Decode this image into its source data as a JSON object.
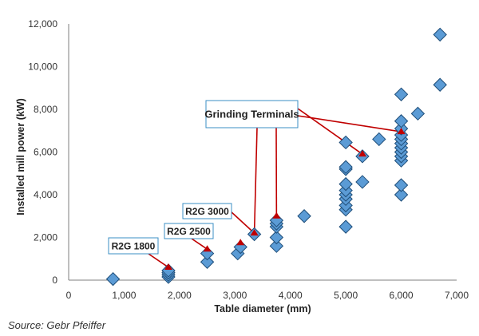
{
  "source_text": "Source: Gebr Pfeiffer",
  "chart_data": {
    "type": "scatter",
    "xlabel": "Table diameter (mm)",
    "ylabel": "Installed mill power (kW)",
    "xlim": [
      0,
      7000
    ],
    "ylim": [
      0,
      12000
    ],
    "xticks": [
      0,
      1000,
      2000,
      3000,
      4000,
      5000,
      6000,
      7000
    ],
    "yticks": [
      0,
      2000,
      4000,
      6000,
      8000,
      10000,
      12000
    ],
    "xtick_labels": [
      "0",
      "1,000",
      "2,000",
      "3,000",
      "4,000",
      "5,000",
      "6,000",
      "7,000"
    ],
    "ytick_labels": [
      "0",
      "2,000",
      "4,000",
      "6,000",
      "8,000",
      "10,000",
      "12,000"
    ],
    "grid": false,
    "marker_color": "#5b9bd5",
    "marker_edge_color": "#1f4e79",
    "highlight_color": "#c00000",
    "points": [
      {
        "x": 800,
        "y": 50
      },
      {
        "x": 1800,
        "y": 150
      },
      {
        "x": 1800,
        "y": 250
      },
      {
        "x": 1800,
        "y": 350
      },
      {
        "x": 1800,
        "y": 450
      },
      {
        "x": 2500,
        "y": 850
      },
      {
        "x": 2500,
        "y": 1250
      },
      {
        "x": 3050,
        "y": 1250
      },
      {
        "x": 3100,
        "y": 1550
      },
      {
        "x": 3350,
        "y": 2150
      },
      {
        "x": 3750,
        "y": 1600
      },
      {
        "x": 3750,
        "y": 2000
      },
      {
        "x": 3750,
        "y": 2500
      },
      {
        "x": 3750,
        "y": 2650
      },
      {
        "x": 3750,
        "y": 2800
      },
      {
        "x": 4250,
        "y": 3000
      },
      {
        "x": 5000,
        "y": 2500
      },
      {
        "x": 5000,
        "y": 3300
      },
      {
        "x": 5000,
        "y": 3500
      },
      {
        "x": 5000,
        "y": 3800
      },
      {
        "x": 5000,
        "y": 4000
      },
      {
        "x": 5000,
        "y": 4200
      },
      {
        "x": 5000,
        "y": 4500
      },
      {
        "x": 5000,
        "y": 5200
      },
      {
        "x": 5000,
        "y": 5300
      },
      {
        "x": 5000,
        "y": 6450
      },
      {
        "x": 5300,
        "y": 4600
      },
      {
        "x": 5300,
        "y": 5800
      },
      {
        "x": 5600,
        "y": 6600
      },
      {
        "x": 6000,
        "y": 4000
      },
      {
        "x": 6000,
        "y": 4450
      },
      {
        "x": 6000,
        "y": 5600
      },
      {
        "x": 6000,
        "y": 5800
      },
      {
        "x": 6000,
        "y": 6000
      },
      {
        "x": 6000,
        "y": 6200
      },
      {
        "x": 6000,
        "y": 6400
      },
      {
        "x": 6000,
        "y": 6600
      },
      {
        "x": 6000,
        "y": 6800
      },
      {
        "x": 6000,
        "y": 7100
      },
      {
        "x": 6000,
        "y": 7450
      },
      {
        "x": 6000,
        "y": 8700
      },
      {
        "x": 6300,
        "y": 7800
      },
      {
        "x": 6700,
        "y": 9150
      },
      {
        "x": 6700,
        "y": 11500
      }
    ],
    "highlighted_points": [
      {
        "x": 1800,
        "y": 600
      },
      {
        "x": 2500,
        "y": 1450
      },
      {
        "x": 3100,
        "y": 1750
      },
      {
        "x": 3350,
        "y": 2200
      },
      {
        "x": 3750,
        "y": 3000
      },
      {
        "x": 5300,
        "y": 5900
      },
      {
        "x": 6000,
        "y": 6950
      }
    ],
    "annotations": [
      {
        "text": "R2G 1800",
        "points": [
          0
        ]
      },
      {
        "text": "R2G 2500",
        "points": [
          1
        ]
      },
      {
        "text": "R2G 3000",
        "points": [
          3
        ]
      },
      {
        "text": "Grinding Terminals",
        "points": [
          3,
          4,
          5,
          6
        ]
      }
    ]
  }
}
